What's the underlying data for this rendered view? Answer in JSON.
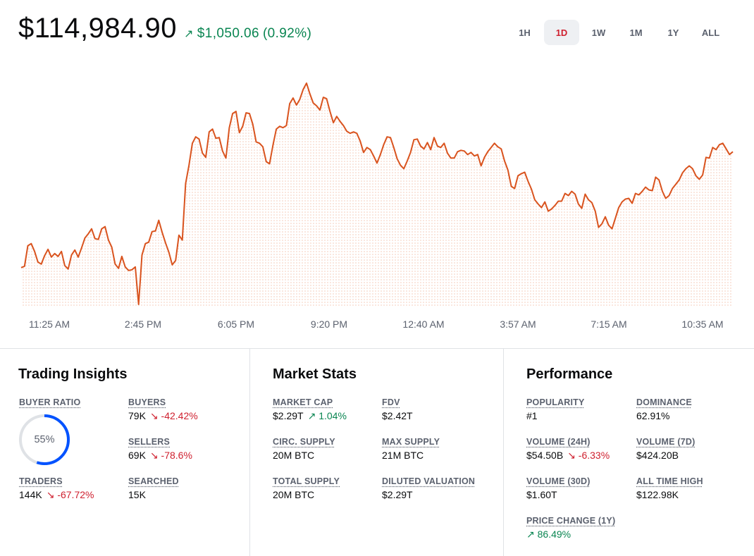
{
  "header": {
    "price": "$114,984.90",
    "change_arrow": "↗",
    "change_amount": "$1,050.06",
    "change_percent": "(0.92%)"
  },
  "ranges": [
    {
      "label": "1H",
      "active": false
    },
    {
      "label": "1D",
      "active": true
    },
    {
      "label": "1W",
      "active": false
    },
    {
      "label": "1M",
      "active": false
    },
    {
      "label": "1Y",
      "active": false
    },
    {
      "label": "ALL",
      "active": false
    }
  ],
  "colors": {
    "line": "#d9531e",
    "fill": "#f4c4ae",
    "positive": "#098551",
    "negative": "#cf202f",
    "ring": "#0052ff"
  },
  "chart_data": {
    "type": "line",
    "x_tick_labels": [
      "11:25 AM",
      "2:45 PM",
      "6:05 PM",
      "9:20 PM",
      "12:40 AM",
      "3:57 AM",
      "7:15 AM",
      "10:35 AM"
    ],
    "values": [
      380,
      378,
      349,
      346,
      357,
      372,
      375,
      363,
      354,
      365,
      360,
      364,
      357,
      377,
      382,
      362,
      355,
      365,
      352,
      338,
      332,
      325,
      339,
      340,
      325,
      322,
      341,
      351,
      375,
      381,
      364,
      379,
      384,
      383,
      379,
      432,
      362,
      346,
      344,
      329,
      328,
      313,
      330,
      345,
      358,
      376,
      370,
      334,
      341,
      261,
      235,
      204,
      195,
      198,
      218,
      224,
      188,
      184,
      197,
      196,
      215,
      225,
      182,
      162,
      159,
      189,
      180,
      161,
      162,
      177,
      202,
      204,
      209,
      230,
      233,
      207,
      184,
      180,
      182,
      179,
      148,
      140,
      150,
      142,
      128,
      119,
      134,
      147,
      151,
      157,
      139,
      141,
      159,
      175,
      166,
      173,
      179,
      187,
      190,
      188,
      190,
      201,
      217,
      210,
      213,
      222,
      232,
      220,
      206,
      195,
      196,
      210,
      226,
      235,
      240,
      229,
      217,
      199,
      198,
      208,
      212,
      203,
      213,
      196,
      208,
      210,
      204,
      218,
      225,
      225,
      216,
      214,
      215,
      220,
      217,
      222,
      220,
      236,
      224,
      216,
      210,
      204,
      209,
      212,
      229,
      242,
      265,
      268,
      250,
      247,
      245,
      258,
      269,
      284,
      290,
      295,
      287,
      300,
      297,
      292,
      286,
      286,
      275,
      278,
      272,
      276,
      290,
      296,
      276,
      284,
      288,
      300,
      323,
      318,
      308,
      320,
      325,
      310,
      295,
      287,
      283,
      282,
      289,
      275,
      277,
      272,
      266,
      270,
      271,
      252,
      256,
      272,
      282,
      278,
      268,
      262,
      256,
      246,
      240,
      236,
      240,
      250,
      255,
      249,
      224,
      225,
      210,
      213,
      206,
      204,
      212,
      220,
      216
    ]
  },
  "insights": {
    "title": "Trading Insights",
    "buyer_ratio_label": "BUYER RATIO",
    "buyer_ratio_value": "55%",
    "buyer_ratio_fraction": 0.55,
    "buyers_label": "BUYERS",
    "buyers_value": "79K",
    "buyers_change": "↘ -42.42%",
    "sellers_label": "SELLERS",
    "sellers_value": "69K",
    "sellers_change": "↘ -78.6%",
    "traders_label": "TRADERS",
    "traders_value": "144K",
    "traders_change": "↘ -67.72%",
    "searched_label": "SEARCHED",
    "searched_value": "15K"
  },
  "market": {
    "title": "Market Stats",
    "market_cap_label": "MARKET CAP",
    "market_cap_value": "$2.29T",
    "market_cap_change": "↗ 1.04%",
    "fdv_label": "FDV",
    "fdv_value": "$2.42T",
    "circ_label": "CIRC. SUPPLY",
    "circ_value": "20M BTC",
    "max_label": "MAX SUPPLY",
    "max_value": "21M BTC",
    "total_label": "TOTAL SUPPLY",
    "total_value": "20M BTC",
    "diluted_label": "DILUTED VALUATION",
    "diluted_value": "$2.29T"
  },
  "performance": {
    "title": "Performance",
    "popularity_label": "POPULARITY",
    "popularity_value": "#1",
    "dominance_label": "DOMINANCE",
    "dominance_value": "62.91%",
    "vol24_label": "VOLUME (24H)",
    "vol24_value": "$54.50B",
    "vol24_change": "↘ -6.33%",
    "vol7_label": "VOLUME (7D)",
    "vol7_value": "$424.20B",
    "vol30_label": "VOLUME (30D)",
    "vol30_value": "$1.60T",
    "ath_label": "ALL TIME HIGH",
    "ath_value": "$122.98K",
    "pc1y_label": "PRICE CHANGE (1Y)",
    "pc1y_value": "↗ 86.49%"
  }
}
